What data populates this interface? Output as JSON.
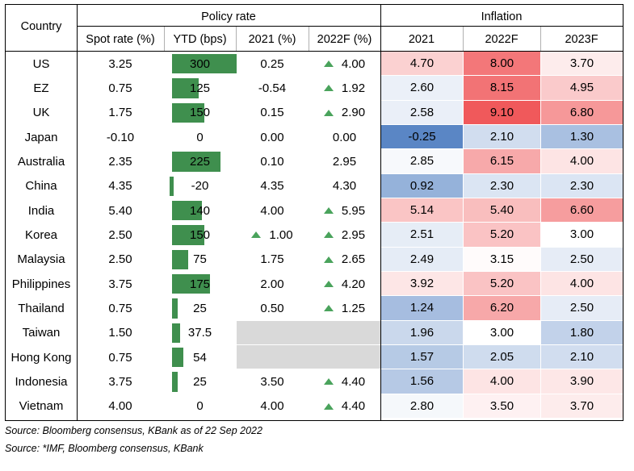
{
  "header": {
    "country": "Country",
    "policy_rate": "Policy rate",
    "inflation": "Inflation",
    "sub": [
      "Spot rate (%)",
      "YTD (bps)",
      "2021 (%)",
      "2022F (%)",
      "2021",
      "2022F",
      "2023F"
    ]
  },
  "rows": [
    {
      "country": "US",
      "spot": "3.25",
      "ytd": "300",
      "ytd_val": 300,
      "r2021": "0.25",
      "up2021": false,
      "r2022": "4.00",
      "up2022": true,
      "inf": [
        "4.70",
        "8.00",
        "3.70"
      ],
      "infv": [
        4.7,
        8.0,
        3.7
      ]
    },
    {
      "country": "EZ",
      "spot": "0.75",
      "ytd": "125",
      "ytd_val": 125,
      "r2021": "-0.54",
      "up2021": false,
      "r2022": "1.92",
      "up2022": true,
      "inf": [
        "2.60",
        "8.15",
        "4.95"
      ],
      "infv": [
        2.6,
        8.15,
        4.95
      ]
    },
    {
      "country": "UK",
      "spot": "1.75",
      "ytd": "150",
      "ytd_val": 150,
      "r2021": "0.15",
      "up2021": false,
      "r2022": "2.90",
      "up2022": true,
      "inf": [
        "2.58",
        "9.10",
        "6.80"
      ],
      "infv": [
        2.58,
        9.1,
        6.8
      ]
    },
    {
      "country": "Japan",
      "spot": "-0.10",
      "ytd": "0",
      "ytd_val": 0,
      "r2021": "0.00",
      "up2021": false,
      "r2022": "0.00",
      "up2022": false,
      "inf": [
        "-0.25",
        "2.10",
        "1.30"
      ],
      "infv": [
        -0.25,
        2.1,
        1.3
      ]
    },
    {
      "country": "Australia",
      "spot": "2.35",
      "ytd": "225",
      "ytd_val": 225,
      "r2021": "0.10",
      "up2021": false,
      "r2022": "2.95",
      "up2022": false,
      "inf": [
        "2.85",
        "6.15",
        "4.00"
      ],
      "infv": [
        2.85,
        6.15,
        4.0
      ]
    },
    {
      "country": "China",
      "spot": "4.35",
      "ytd": "-20",
      "ytd_val": -20,
      "r2021": "4.35",
      "up2021": false,
      "r2022": "4.30",
      "up2022": false,
      "inf": [
        "0.92",
        "2.30",
        "2.30"
      ],
      "infv": [
        0.92,
        2.3,
        2.3
      ]
    },
    {
      "country": "India",
      "spot": "5.40",
      "ytd": "140",
      "ytd_val": 140,
      "r2021": "4.00",
      "up2021": false,
      "r2022": "5.95",
      "up2022": true,
      "inf": [
        "5.14",
        "5.40",
        "6.60"
      ],
      "infv": [
        5.14,
        5.4,
        6.6
      ]
    },
    {
      "country": "Korea",
      "spot": "2.50",
      "ytd": "150",
      "ytd_val": 150,
      "r2021": "1.00",
      "up2021": true,
      "r2022": "2.95",
      "up2022": true,
      "inf": [
        "2.51",
        "5.20",
        "3.00"
      ],
      "infv": [
        2.51,
        5.2,
        3.0
      ]
    },
    {
      "country": "Malaysia",
      "spot": "2.50",
      "ytd": "75",
      "ytd_val": 75,
      "r2021": "1.75",
      "up2021": false,
      "r2022": "2.65",
      "up2022": true,
      "inf": [
        "2.49",
        "3.15",
        "2.50"
      ],
      "infv": [
        2.49,
        3.15,
        2.5
      ]
    },
    {
      "country": "Philippines",
      "spot": "3.75",
      "ytd": "175",
      "ytd_val": 175,
      "r2021": "2.00",
      "up2021": false,
      "r2022": "4.20",
      "up2022": true,
      "inf": [
        "3.92",
        "5.20",
        "4.00"
      ],
      "infv": [
        3.92,
        5.2,
        4.0
      ]
    },
    {
      "country": "Thailand",
      "spot": "0.75",
      "ytd": "25",
      "ytd_val": 25,
      "r2021": "0.50",
      "up2021": false,
      "r2022": "1.25",
      "up2022": true,
      "inf": [
        "1.24",
        "6.20",
        "2.50"
      ],
      "infv": [
        1.24,
        6.2,
        2.5
      ]
    },
    {
      "country": "Taiwan",
      "spot": "1.50",
      "ytd": "37.5",
      "ytd_val": 37.5,
      "r2021": "",
      "up2021": false,
      "r2022": "",
      "up2022": false,
      "inf": [
        "1.96",
        "3.00",
        "1.80"
      ],
      "infv": [
        1.96,
        3.0,
        1.8
      ],
      "grey": true
    },
    {
      "country": "Hong Kong",
      "spot": "0.75",
      "ytd": "54",
      "ytd_val": 54,
      "r2021": "",
      "up2021": false,
      "r2022": "",
      "up2022": false,
      "inf": [
        "1.57",
        "2.05",
        "2.10"
      ],
      "infv": [
        1.57,
        2.05,
        2.1
      ],
      "grey": true
    },
    {
      "country": "Indonesia",
      "spot": "3.75",
      "ytd": "25",
      "ytd_val": 25,
      "r2021": "3.50",
      "up2021": false,
      "r2022": "4.40",
      "up2022": true,
      "inf": [
        "1.56",
        "4.00",
        "3.90"
      ],
      "infv": [
        1.56,
        4.0,
        3.9
      ]
    },
    {
      "country": "Vietnam",
      "spot": "4.00",
      "ytd": "0",
      "ytd_val": 0,
      "r2021": "4.00",
      "up2021": false,
      "r2022": "4.40",
      "up2022": true,
      "inf": [
        "2.80",
        "3.50",
        "3.70"
      ],
      "infv": [
        2.8,
        3.5,
        3.7
      ]
    }
  ],
  "colors": {
    "bar": "#3f8f4e",
    "arrow": "#4aa35c",
    "grey": "#d9d9d9",
    "cold": "#5a86c5",
    "hot": "#f0595b"
  },
  "sources": [
    "Source: Bloomberg consensus, KBank as of 22 Sep 2022",
    "Source: *IMF, Bloomberg consensus, KBank"
  ]
}
